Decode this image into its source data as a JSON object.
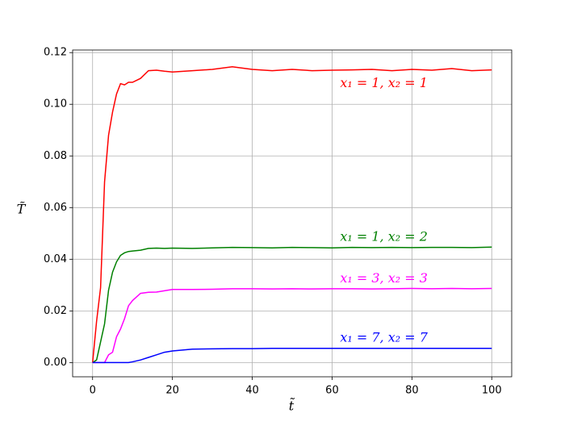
{
  "chart_data": {
    "type": "line",
    "xlabel": "t̃",
    "ylabel": "T̃",
    "x": [
      0,
      1,
      2,
      3,
      4,
      5,
      6,
      7,
      8,
      9,
      10,
      12,
      14,
      16,
      18,
      20,
      25,
      30,
      35,
      40,
      45,
      50,
      55,
      60,
      65,
      70,
      75,
      80,
      85,
      90,
      95,
      100
    ],
    "series": [
      {
        "name": "x₁ = 1,  x₂ = 1",
        "color": "#ff0000",
        "values": [
          0,
          0.016,
          0.029,
          0.07,
          0.088,
          0.097,
          0.104,
          0.108,
          0.1075,
          0.1085,
          0.1085,
          0.11,
          0.113,
          0.1132,
          0.1128,
          0.1125,
          0.113,
          0.1135,
          0.1145,
          0.1135,
          0.113,
          0.1135,
          0.113,
          0.1132,
          0.1133,
          0.1135,
          0.113,
          0.1135,
          0.1132,
          0.1138,
          0.113,
          0.1133
        ]
      },
      {
        "name": "x₁ = 1,  x₂ = 2",
        "color": "#008000",
        "values": [
          0,
          0.001,
          0.008,
          0.015,
          0.028,
          0.035,
          0.039,
          0.0415,
          0.0425,
          0.043,
          0.0432,
          0.0435,
          0.0442,
          0.0443,
          0.0442,
          0.0443,
          0.0442,
          0.0444,
          0.0446,
          0.0445,
          0.0444,
          0.0446,
          0.0445,
          0.0444,
          0.0446,
          0.0445,
          0.0446,
          0.0445,
          0.0446,
          0.0446,
          0.0445,
          0.0447
        ]
      },
      {
        "name": "x₁ = 3,  x₂ = 3",
        "color": "#ff00ff",
        "values": [
          0,
          0,
          0,
          0,
          0.003,
          0.004,
          0.01,
          0.013,
          0.017,
          0.022,
          0.024,
          0.0268,
          0.0272,
          0.0273,
          0.0278,
          0.0283,
          0.0283,
          0.0284,
          0.0286,
          0.0286,
          0.0285,
          0.0286,
          0.0285,
          0.0286,
          0.0286,
          0.0285,
          0.0286,
          0.0287,
          0.0286,
          0.0287,
          0.0286,
          0.0287
        ]
      },
      {
        "name": "x₁ = 7,  x₂ = 7",
        "color": "#0000ff",
        "values": [
          0,
          0,
          0,
          0,
          0,
          0,
          0,
          0,
          0,
          0,
          0.0003,
          0.001,
          0.002,
          0.003,
          0.004,
          0.0045,
          0.0052,
          0.0053,
          0.0054,
          0.0054,
          0.0055,
          0.0055,
          0.0055,
          0.0055,
          0.0055,
          0.0055,
          0.0055,
          0.0055,
          0.0055,
          0.0055,
          0.0055,
          0.0055
        ]
      }
    ],
    "annotations": [
      {
        "text": "x₁ = 1,  x₂ = 1",
        "x": 62,
        "y": 0.108,
        "color": "#ff0000"
      },
      {
        "text": "x₁ = 1,  x₂ = 2",
        "x": 62,
        "y": 0.0485,
        "color": "#008000"
      },
      {
        "text": "x₁ = 3,  x₂ = 3",
        "x": 62,
        "y": 0.0325,
        "color": "#ff00ff"
      },
      {
        "text": "x₁ = 7,  x₂ = 7",
        "x": 62,
        "y": 0.0095,
        "color": "#0000ff"
      }
    ],
    "xlim": [
      -5,
      105
    ],
    "ylim": [
      -0.0055,
      0.121
    ],
    "xticks": [
      0,
      20,
      40,
      60,
      80,
      100
    ],
    "yticks": [
      {
        "value": 0,
        "label": "0.00"
      },
      {
        "value": 0.02,
        "label": "0.02"
      },
      {
        "value": 0.04,
        "label": "0.04"
      },
      {
        "value": 0.06,
        "label": "0.06"
      },
      {
        "value": 0.08,
        "label": "0.08"
      },
      {
        "value": 0.1,
        "label": "0.10"
      },
      {
        "value": 0.12,
        "label": "0.12"
      }
    ],
    "grid": true
  }
}
